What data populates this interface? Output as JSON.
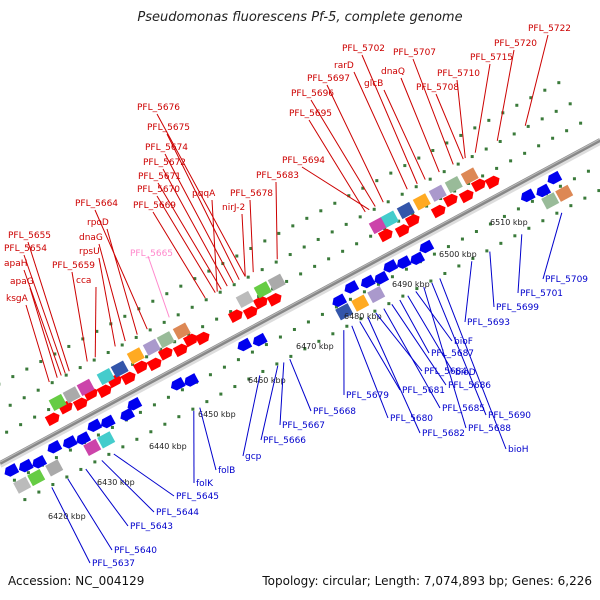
{
  "title": "Pseudomonas fluorescens Pf-5, complete genome",
  "footer": {
    "accession": "Accession: NC_004129",
    "summary": "Topology: circular; Length: 7,074,893 bp; Genes: 6,226"
  },
  "colors": {
    "forward_label": "#cc0000",
    "reverse_label": "#0000cc",
    "pseudo_label": "#ff88cc",
    "forward_gene": "#ff0000",
    "reverse_gene": "#0000ee",
    "backbone": "#888888",
    "tick": "#228822"
  },
  "kbp_marks": [
    "6420 kbp",
    "6430 kbp",
    "6440 kbp",
    "6450 kbp",
    "6460 kbp",
    "6470 kbp",
    "6480 kbp",
    "6490 kbp",
    "6500 kbp",
    "6510 kbp"
  ],
  "forward_labels": [
    "ksgA",
    "apaG",
    "apaH",
    "PFL_5654",
    "PFL_5655",
    "PFL_5659",
    "cca",
    "rpsU",
    "dnaG",
    "rpoD",
    "PFL_5664",
    "PFL_5669",
    "PFL_5670",
    "PFL_5671",
    "PFL_5672",
    "PFL_5674",
    "PFL_5675",
    "PFL_5676",
    "pqqA",
    "nirJ-2",
    "PFL_5678",
    "PFL_5683",
    "PFL_5694",
    "PFL_5695",
    "PFL_5696",
    "PFL_5697",
    "rarD",
    "PFL_5702",
    "glcB",
    "dnaQ",
    "PFL_5707",
    "PFL_5708",
    "PFL_5710",
    "PFL_5715",
    "PFL_5720",
    "PFL_5722"
  ],
  "pseudo_labels": [
    "PFL_5665"
  ],
  "reverse_labels": [
    "PFL_5637",
    "PFL_5640",
    "PFL_5643",
    "PFL_5644",
    "PFL_5645",
    "folK",
    "folB",
    "gcp",
    "PFL_5666",
    "PFL_5667",
    "PFL_5668",
    "PFL_5679",
    "PFL_5680",
    "PFL_5681",
    "PFL_5682",
    "PFL_5684",
    "PFL_5685",
    "PFL_5686",
    "PFL_5687",
    "bioD",
    "bioF",
    "PFL_5688",
    "PFL_5690",
    "bioH",
    "PFL_5693",
    "PFL_5699",
    "PFL_5701",
    "PFL_5709"
  ]
}
